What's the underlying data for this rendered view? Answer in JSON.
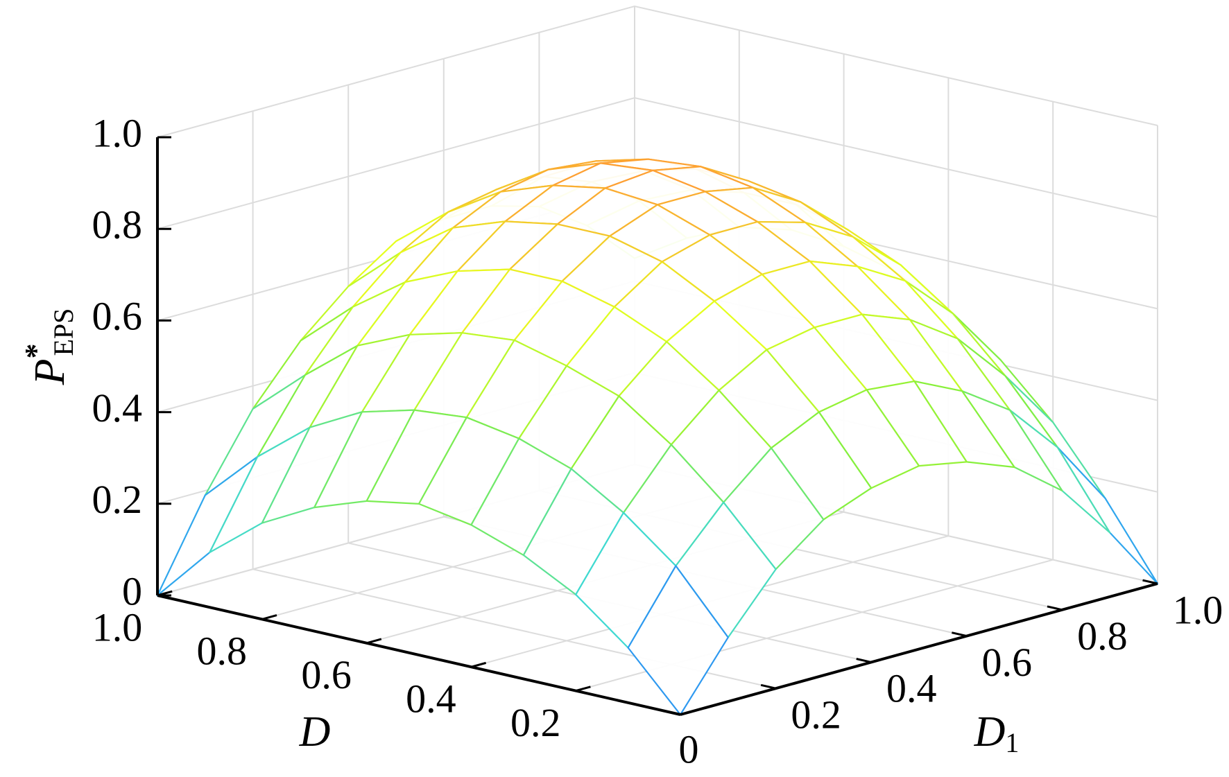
{
  "chart_data": {
    "type": "surface",
    "xlabel": "D",
    "ylabel": "D",
    "ylabel_subscript": "1",
    "zlabel": "P",
    "zlabel_superscript": "*",
    "zlabel_subscript": "EPS",
    "x": [
      0,
      0.1,
      0.2,
      0.3,
      0.4,
      0.5,
      0.6,
      0.7,
      0.8,
      0.9,
      1
    ],
    "y": [
      0,
      0.1,
      0.2,
      0.3,
      0.4,
      0.5,
      0.6,
      0.7,
      0.8,
      0.9,
      1
    ],
    "z": [
      [
        0,
        0.14,
        0.26,
        0.34,
        0.38,
        0.4,
        0.38,
        0.34,
        0.26,
        0.14,
        0
      ],
      [
        0.12,
        0.27,
        0.38,
        0.47,
        0.52,
        0.54,
        0.53,
        0.48,
        0.41,
        0.3,
        0.16
      ],
      [
        0.21,
        0.36,
        0.48,
        0.57,
        0.63,
        0.65,
        0.65,
        0.61,
        0.54,
        0.43,
        0.3
      ],
      [
        0.27,
        0.43,
        0.56,
        0.65,
        0.71,
        0.74,
        0.74,
        0.7,
        0.64,
        0.54,
        0.41
      ],
      [
        0.31,
        0.47,
        0.6,
        0.7,
        0.77,
        0.8,
        0.8,
        0.77,
        0.71,
        0.62,
        0.49
      ],
      [
        0.33,
        0.49,
        0.63,
        0.73,
        0.8,
        0.84,
        0.84,
        0.82,
        0.76,
        0.67,
        0.55
      ],
      [
        0.31,
        0.48,
        0.62,
        0.73,
        0.8,
        0.85,
        0.86,
        0.84,
        0.78,
        0.7,
        0.58
      ],
      [
        0.27,
        0.45,
        0.59,
        0.7,
        0.78,
        0.83,
        0.85,
        0.83,
        0.78,
        0.7,
        0.59
      ],
      [
        0.21,
        0.39,
        0.54,
        0.65,
        0.74,
        0.79,
        0.81,
        0.8,
        0.75,
        0.68,
        0.57
      ],
      [
        0.12,
        0.3,
        0.45,
        0.57,
        0.66,
        0.72,
        0.74,
        0.74,
        0.7,
        0.63,
        0.52
      ],
      [
        0,
        0.19,
        0.35,
        0.47,
        0.56,
        0.63,
        0.65,
        0.65,
        0.62,
        0.55,
        0.45
      ]
    ],
    "xlim": [
      0,
      1
    ],
    "ylim": [
      0,
      1
    ],
    "zlim": [
      0,
      1
    ],
    "xticks": [
      0,
      0.2,
      0.4,
      0.6,
      0.8,
      {
        "value": 1,
        "label": "1.0"
      }
    ],
    "yticks": [
      0.2,
      0.4,
      0.6,
      0.8,
      {
        "value": 1,
        "label": "1.0"
      }
    ],
    "zticks": [
      0,
      0.2,
      0.4,
      0.6,
      0.8,
      {
        "value": 1,
        "label": "1.0"
      }
    ],
    "grid": true,
    "colormap": [
      "#2236ff",
      "#36d6e6",
      "#86f03c",
      "#e6ff1e",
      "#ff9a34"
    ]
  }
}
